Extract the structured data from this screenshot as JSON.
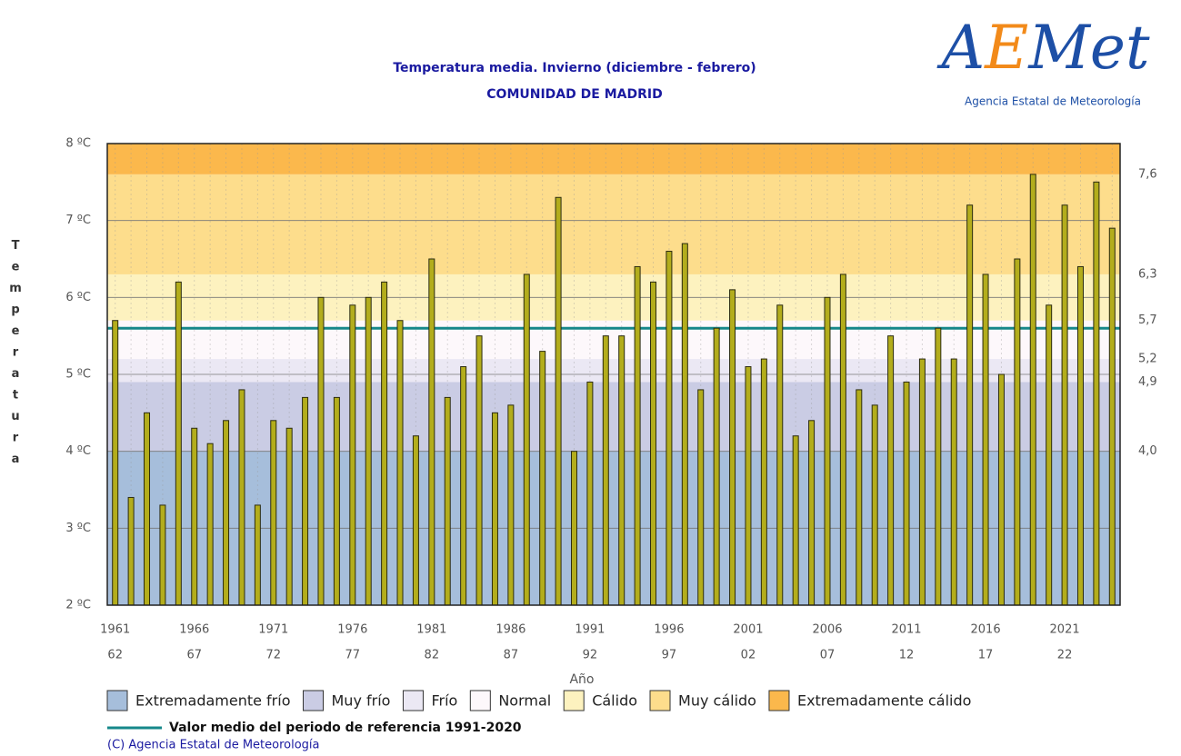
{
  "header": {
    "logo": "AEMet",
    "agency": "Agencia Estatal de Meteorología"
  },
  "chart_data": {
    "type": "bar",
    "title": "Temperatura media. Invierno (diciembre - febrero)",
    "subtitle": "COMUNIDAD DE MADRID",
    "y_label": "Temperatura",
    "x_label": "Año",
    "categories": [
      "1961",
      null,
      null,
      null,
      null,
      "1966",
      null,
      null,
      null,
      null,
      "1971",
      null,
      null,
      null,
      null,
      "1976",
      null,
      null,
      null,
      null,
      "1981",
      null,
      null,
      null,
      null,
      "1986",
      null,
      null,
      null,
      null,
      "1991",
      null,
      null,
      null,
      null,
      "1996",
      null,
      null,
      null,
      null,
      "2001",
      null,
      null,
      null,
      null,
      "2006",
      null,
      null,
      null,
      null,
      "2011",
      null,
      null,
      null,
      null,
      "2016",
      null,
      null,
      null,
      null,
      "2021",
      null,
      null,
      null
    ],
    "categories_line2": [
      "62",
      null,
      null,
      null,
      null,
      "67",
      null,
      null,
      null,
      null,
      "72",
      null,
      null,
      null,
      null,
      "77",
      null,
      null,
      null,
      null,
      "82",
      null,
      null,
      null,
      null,
      "87",
      null,
      null,
      null,
      null,
      "92",
      null,
      null,
      null,
      null,
      "97",
      null,
      null,
      null,
      null,
      "02",
      null,
      null,
      null,
      null,
      "07",
      null,
      null,
      null,
      null,
      "12",
      null,
      null,
      null,
      null,
      "17",
      null,
      null,
      null,
      null,
      "22",
      null,
      null,
      null
    ],
    "values": [
      5.7,
      3.4,
      4.5,
      3.3,
      6.2,
      4.3,
      4.1,
      4.4,
      4.8,
      3.3,
      4.4,
      4.3,
      4.7,
      6.0,
      4.7,
      5.9,
      6.0,
      6.2,
      5.7,
      4.2,
      6.5,
      4.7,
      5.1,
      5.5,
      4.5,
      4.6,
      6.3,
      5.3,
      7.3,
      4.0,
      4.9,
      5.5,
      5.5,
      6.4,
      6.2,
      6.6,
      6.7,
      4.8,
      5.6,
      6.1,
      5.1,
      5.2,
      5.9,
      4.2,
      4.4,
      6.0,
      6.3,
      4.8,
      4.6,
      5.5,
      4.9,
      5.2,
      5.6,
      5.2,
      7.2,
      6.3,
      5.0,
      6.5,
      7.6,
      5.9,
      7.2,
      6.4,
      7.5,
      6.9
    ],
    "color": "#b3ad1c",
    "ylim": [
      2,
      8
    ],
    "yticks": [
      {
        "value": 2,
        "label": "2 ºC"
      },
      {
        "value": 3,
        "label": "3 ºC"
      },
      {
        "value": 4,
        "label": "4 ºC"
      },
      {
        "value": 5,
        "label": "5 ºC"
      },
      {
        "value": 6,
        "label": "6 ºC"
      },
      {
        "value": 7,
        "label": "7 ºC"
      },
      {
        "value": 8,
        "label": "8 ºC"
      }
    ],
    "y2lim": [
      2,
      8
    ],
    "y2ticks": [
      {
        "value": 4.0,
        "label": "4,0"
      },
      {
        "value": 4.9,
        "label": "4,9"
      },
      {
        "value": 5.2,
        "label": "5,2"
      },
      {
        "value": 5.7,
        "label": "5,7"
      },
      {
        "value": 6.3,
        "label": "6,3"
      },
      {
        "value": 7.6,
        "label": "7,6"
      }
    ],
    "bands": [
      {
        "name": "Extremadamente frío",
        "color": "#a6bedb"
      },
      {
        "name": "Muy frío",
        "color": "#cacce4"
      },
      {
        "name": "Frío",
        "color": "#ebe8f4"
      },
      {
        "name": "Normal",
        "color": "#fdf8fb"
      },
      {
        "name": "Cálido",
        "color": "#fdf2bf"
      },
      {
        "name": "Muy cálido",
        "color": "#fddd8c"
      },
      {
        "name": "Extremadamente cálido",
        "color": "#fbb84c"
      }
    ],
    "reference_line": {
      "name": "Valor medio del periodo de referencia 1991-2020",
      "value": 5.6,
      "color": "#16888a"
    },
    "grid": true,
    "copyright": "(C) Agencia Estatal de Meteorología"
  }
}
